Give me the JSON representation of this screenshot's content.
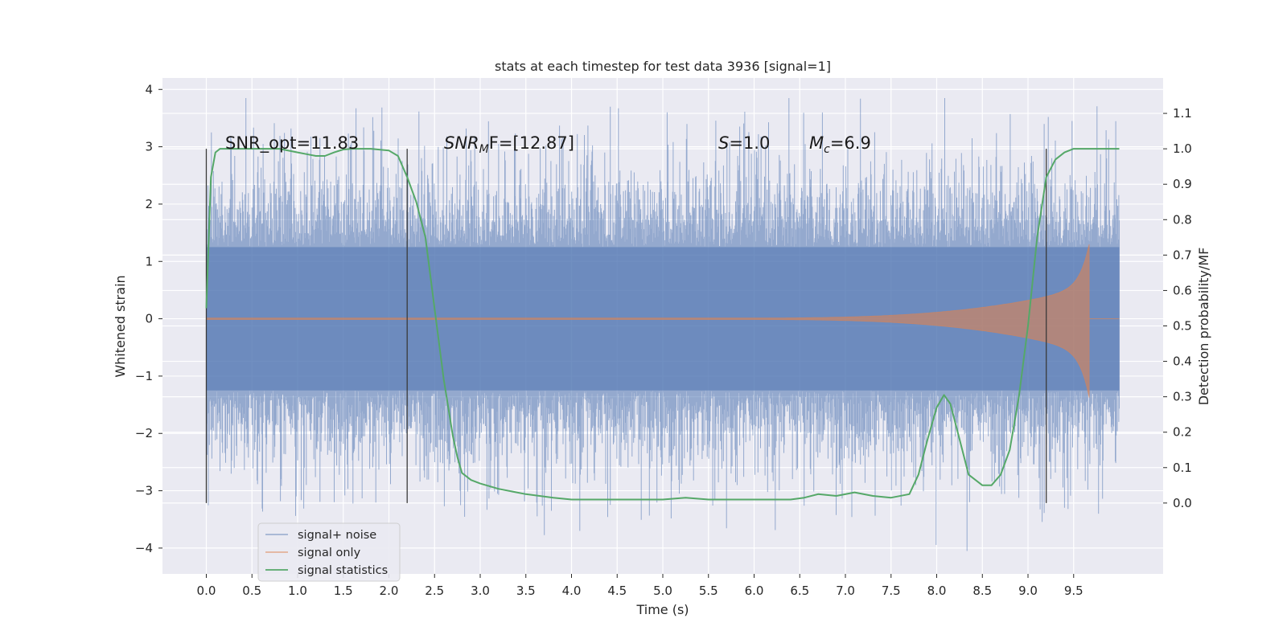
{
  "chart_data": {
    "type": "line",
    "title": "stats at each timestep for test data 3936 [signal=1]",
    "xlabel": "Time (s)",
    "ylabel_left": "Whitened strain",
    "ylabel_right": "Detection probability/MF",
    "xlim": [
      -0.48,
      10.48
    ],
    "ylim_left": [
      -4.45,
      4.2
    ],
    "ylim_right": [
      -0.2,
      1.2
    ],
    "x_ticks": [
      0.0,
      0.5,
      1.0,
      1.5,
      2.0,
      2.5,
      3.0,
      3.5,
      4.0,
      4.5,
      5.0,
      5.5,
      6.0,
      6.5,
      7.0,
      7.5,
      8.0,
      8.5,
      9.0,
      9.5
    ],
    "x_tick_labels": [
      "0.0",
      "0.5",
      "1.0",
      "1.5",
      "2.0",
      "2.5",
      "3.0",
      "3.5",
      "4.0",
      "4.5",
      "5.0",
      "5.5",
      "6.0",
      "6.5",
      "7.0",
      "7.5",
      "8.0",
      "8.5",
      "9.0",
      "9.5"
    ],
    "y_left_ticks": [
      4,
      3,
      2,
      1,
      0,
      -1,
      -2,
      -3,
      -4
    ],
    "y_left_tick_labels": [
      "4",
      "3",
      "2",
      "1",
      "0",
      "−1",
      "−2",
      "−3",
      "−4"
    ],
    "y_right_ticks": [
      1.1,
      1.0,
      0.9,
      0.8,
      0.7,
      0.6,
      0.5,
      0.4,
      0.3,
      0.2,
      0.1,
      0.0
    ],
    "y_right_tick_labels": [
      "1.1",
      "1.0",
      "0.9",
      "0.8",
      "0.7",
      "0.6",
      "0.5",
      "0.4",
      "0.3",
      "0.2",
      "0.1",
      "0.0"
    ],
    "grid": true,
    "legend_position": "lower-left",
    "annotations": {
      "snr_opt": "SNR_opt=11.83",
      "snr_mf_base": "SNR",
      "snr_mf_sub": "M",
      "snr_mf_rest": "F=[12.87]",
      "s_base": "S",
      "s_rest": "=1.0",
      "mc_base": "M",
      "mc_sub": "c",
      "mc_rest": "=6.9"
    },
    "vertical_markers": [
      0.0,
      2.2,
      9.2
    ],
    "vertical_marker_range_right": [
      0.0,
      1.0
    ],
    "series": [
      {
        "name": "signal+ noise",
        "color": "#4c72b0",
        "x_range": [
          0.0,
          10.0
        ],
        "envelope": {
          "core_amplitude": 1.25,
          "typical_peak_range": [
            1.7,
            2.7
          ],
          "max": 3.85,
          "min": -4.05
        }
      },
      {
        "name": "signal only",
        "color": "#dd8452",
        "x_range": [
          0.0,
          10.0
        ],
        "chirp": {
          "onset_time": 5.6,
          "merger_time": 9.67,
          "peak_positive": 1.3,
          "peak_negative": -1.4
        }
      },
      {
        "name": "signal statistics",
        "color": "#55a868",
        "axis": "right",
        "x": [
          0.0,
          0.05,
          0.1,
          0.15,
          0.2,
          0.3,
          0.5,
          0.8,
          1.0,
          1.1,
          1.2,
          1.3,
          1.4,
          1.5,
          1.6,
          1.8,
          2.0,
          2.1,
          2.2,
          2.3,
          2.4,
          2.5,
          2.6,
          2.65,
          2.7,
          2.75,
          2.8,
          2.9,
          3.0,
          3.2,
          3.5,
          3.8,
          4.0,
          4.5,
          5.0,
          5.25,
          5.5,
          6.0,
          6.2,
          6.4,
          6.55,
          6.7,
          6.9,
          7.1,
          7.3,
          7.5,
          7.7,
          7.8,
          7.9,
          8.0,
          8.08,
          8.15,
          8.25,
          8.35,
          8.5,
          8.6,
          8.7,
          8.8,
          8.9,
          9.0,
          9.1,
          9.2,
          9.3,
          9.4,
          9.5,
          9.6,
          9.7,
          9.8,
          10.0
        ],
        "values": [
          0.55,
          0.92,
          0.99,
          1.0,
          1.0,
          1.0,
          1.0,
          1.0,
          0.99,
          0.985,
          0.98,
          0.98,
          0.99,
          0.998,
          1.0,
          1.0,
          0.995,
          0.98,
          0.92,
          0.85,
          0.75,
          0.55,
          0.35,
          0.27,
          0.19,
          0.13,
          0.085,
          0.065,
          0.055,
          0.04,
          0.025,
          0.015,
          0.01,
          0.01,
          0.01,
          0.015,
          0.01,
          0.01,
          0.01,
          0.01,
          0.015,
          0.025,
          0.02,
          0.03,
          0.02,
          0.015,
          0.025,
          0.08,
          0.18,
          0.27,
          0.305,
          0.28,
          0.18,
          0.08,
          0.05,
          0.05,
          0.08,
          0.15,
          0.3,
          0.5,
          0.75,
          0.92,
          0.97,
          0.99,
          1.0,
          1.0,
          1.0,
          1.0,
          1.0
        ]
      }
    ]
  }
}
